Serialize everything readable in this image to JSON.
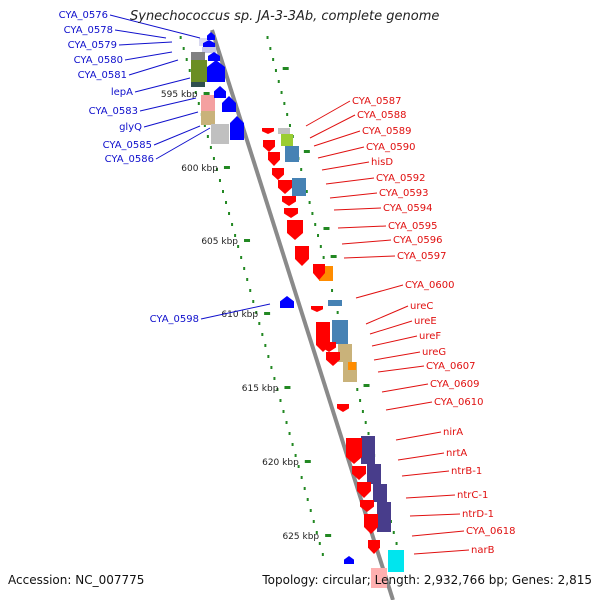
{
  "title": "Synechococcus sp. JA-3-3Ab, complete genome",
  "accession": "Accession: NC_007775",
  "topology": "Topology: circular; Length: 2,932,766 bp; Genes: 2,815",
  "colors": {
    "backbone": "#8a8a8a",
    "left_label": "#1010cc",
    "right_label": "#e01010",
    "tick": "#228822"
  },
  "scale_ticks": [
    "595 kbp",
    "600 kbp",
    "605 kbp",
    "610 kbp",
    "615 kbp",
    "620 kbp",
    "625 kbp"
  ],
  "left_genes": [
    "CYA_0576",
    "CYA_0578",
    "CYA_0579",
    "CYA_0580",
    "CYA_0581",
    "lepA",
    "CYA_0583",
    "glyQ",
    "CYA_0585",
    "CYA_0586",
    "CYA_0598"
  ],
  "right_genes": [
    "CYA_0587",
    "CYA_0588",
    "CYA_0589",
    "CYA_0590",
    "hisD",
    "CYA_0592",
    "CYA_0593",
    "CYA_0594",
    "CYA_0595",
    "CYA_0596",
    "CYA_0597",
    "CYA_0600",
    "ureC",
    "ureE",
    "ureF",
    "ureG",
    "CYA_0607",
    "CYA_0609",
    "CYA_0610",
    "nirA",
    "nrtA",
    "ntrB-1",
    "ntrC-1",
    "ntrD-1",
    "CYA_0618",
    "narB"
  ]
}
